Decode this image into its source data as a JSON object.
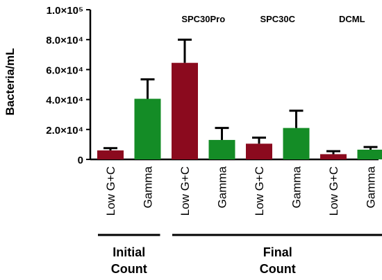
{
  "chart_data": {
    "type": "bar",
    "title": "",
    "ylabel": "Bacteria/mL",
    "ylim": [
      0,
      100000
    ],
    "y_ticks": [
      {
        "value": 0,
        "label": "0"
      },
      {
        "value": 20000,
        "label": "2.0×10⁴"
      },
      {
        "value": 40000,
        "label": "4.0×10⁴"
      },
      {
        "value": 60000,
        "label": "6.0×10⁴"
      },
      {
        "value": 80000,
        "label": "8.0×10⁴"
      },
      {
        "value": 100000,
        "label": "1.0×10⁵"
      }
    ],
    "categories": [
      "Low G+C",
      "Gamma",
      "Low G+C",
      "Gamma",
      "Low G+C",
      "Gamma",
      "Low G+C",
      "Gamma"
    ],
    "values": [
      6000,
      40500,
      64500,
      13000,
      10500,
      21000,
      3500,
      6500
    ],
    "errors": [
      1500,
      13000,
      15500,
      8000,
      4000,
      11500,
      2000,
      1800
    ],
    "bar_colors": [
      "#8b0a1e",
      "#148c26",
      "#8b0a1e",
      "#148c26",
      "#8b0a1e",
      "#148c26",
      "#8b0a1e",
      "#148c26"
    ],
    "group_labels": [
      {
        "label": "SPC30Pro",
        "bars": [
          2,
          3
        ]
      },
      {
        "label": "SPC30C",
        "bars": [
          4,
          5
        ]
      },
      {
        "label": "DCML",
        "bars": [
          6,
          7
        ]
      }
    ],
    "brackets": [
      {
        "line1": "Initial",
        "line2": "Count",
        "bars": [
          0,
          1
        ]
      },
      {
        "line1": "Final",
        "line2": "Count",
        "bars": [
          2,
          7
        ]
      }
    ],
    "grid": false,
    "legend": "none"
  }
}
